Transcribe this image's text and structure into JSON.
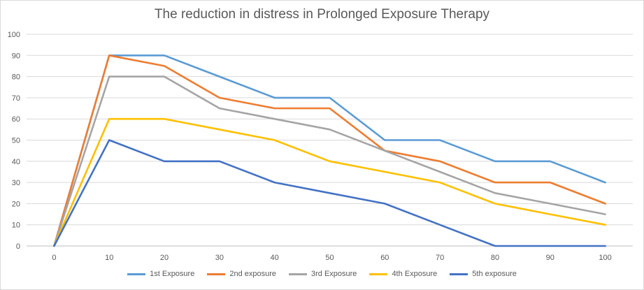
{
  "chart_data": {
    "type": "line",
    "title": "The reduction in distress in Prolonged Exposure Therapy",
    "x": [
      0,
      10,
      20,
      30,
      40,
      50,
      60,
      70,
      80,
      90,
      100
    ],
    "ylim": [
      0,
      100
    ],
    "yticks": [
      0,
      10,
      20,
      30,
      40,
      50,
      60,
      70,
      80,
      90,
      100
    ],
    "grid": true,
    "legend_position": "bottom",
    "series": [
      {
        "name": "1st Exposure",
        "color": "#5B9BD5",
        "values": [
          0,
          90,
          90,
          80,
          70,
          70,
          50,
          50,
          40,
          40,
          30
        ]
      },
      {
        "name": "2nd exposure",
        "color": "#ED7D31",
        "values": [
          0,
          90,
          85,
          70,
          65,
          65,
          45,
          40,
          30,
          30,
          20
        ]
      },
      {
        "name": "3rd Exposure",
        "color": "#A5A5A5",
        "values": [
          0,
          80,
          80,
          65,
          60,
          55,
          45,
          35,
          25,
          20,
          15
        ]
      },
      {
        "name": "4th Exposure",
        "color": "#FFC000",
        "values": [
          0,
          60,
          60,
          55,
          50,
          40,
          35,
          30,
          20,
          15,
          10
        ]
      },
      {
        "name": "5th exposure",
        "color": "#4472C4",
        "values": [
          0,
          50,
          40,
          40,
          30,
          25,
          20,
          10,
          0,
          0,
          0
        ]
      }
    ]
  }
}
